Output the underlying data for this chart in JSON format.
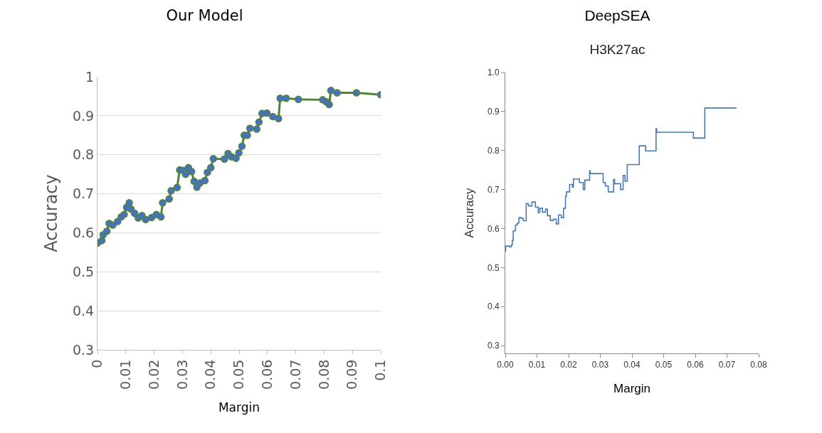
{
  "chart_data": [
    {
      "type": "line",
      "title": "Our Model",
      "xlabel": "Margin",
      "ylabel": "Accuracy",
      "xlim": [
        0,
        0.1
      ],
      "xticks": [
        0,
        0.01,
        0.02,
        0.03,
        0.04,
        0.05,
        0.06,
        0.07,
        0.08,
        0.09,
        0.1
      ],
      "ylim": [
        0.3,
        1
      ],
      "yticks": [
        0.3,
        0.4,
        0.5,
        0.6,
        0.7,
        0.8,
        0.9,
        1
      ],
      "grid": "y",
      "marker": "circle",
      "line_style": "solid",
      "series": [
        {
          "color": "#548235",
          "colors": [
            "#4472c4",
            "#4472c4",
            "#4472c4",
            "#4472c4",
            "#4472c4",
            "#4472c4",
            "#4472c4",
            "#4472c4",
            "#4472c4",
            "#4472c4",
            "#4472c4",
            "#4472c4",
            "#4472c4",
            "#4472c4",
            "#4472c4",
            "#4472c4",
            "#4472c4",
            "#4472c4",
            "#4472c4",
            "#4472c4",
            "#4472c4",
            "#4472c4",
            "#4472c4",
            "#4472c4",
            "#4472c4",
            "#4472c4",
            "#4472c4",
            "#4472c4",
            "#4472c4",
            "#4472c4",
            "#4472c4",
            "#4472c4",
            "#4472c4",
            "#4472c4",
            "#4472c4",
            "#4472c4",
            "#4472c4",
            "#4472c4",
            "#4472c4",
            "#4472c4",
            "#4472c4",
            "#4472c4",
            "#4472c4",
            "#4472c4",
            "#4472c4",
            "#4472c4",
            "#4472c4",
            "#4472c4",
            "#4472c4",
            "#4472c4",
            "#4472c4",
            "#4472c4",
            "#4472c4",
            "#4472c4",
            "#4472c4",
            "#4472c4",
            "#4472c4",
            "#4472c4",
            "#4472c4",
            "#4472c4"
          ],
          "x": [
            0,
            0.0015,
            0.002,
            0.0033,
            0.0041,
            0.0054,
            0.0071,
            0.0084,
            0.0094,
            0.0103,
            0.0112,
            0.0118,
            0.0131,
            0.0144,
            0.0157,
            0.017,
            0.0191,
            0.0208,
            0.0224,
            0.023,
            0.0253,
            0.026,
            0.0281,
            0.029,
            0.0302,
            0.0311,
            0.0321,
            0.0332,
            0.0341,
            0.0351,
            0.0362,
            0.0379,
            0.0388,
            0.04,
            0.0409,
            0.0448,
            0.0461,
            0.0473,
            0.0489,
            0.0499,
            0.051,
            0.0518,
            0.0529,
            0.0538,
            0.0562,
            0.057,
            0.0581,
            0.0598,
            0.0619,
            0.0639,
            0.0645,
            0.0666,
            0.0709,
            0.0795,
            0.0807,
            0.0818,
            0.0824,
            0.0846,
            0.0914,
            0.1
          ],
          "values": [
            0.574,
            0.58,
            0.595,
            0.604,
            0.624,
            0.62,
            0.629,
            0.641,
            0.647,
            0.665,
            0.677,
            0.661,
            0.65,
            0.638,
            0.644,
            0.634,
            0.639,
            0.647,
            0.641,
            0.677,
            0.687,
            0.708,
            0.716,
            0.761,
            0.76,
            0.75,
            0.767,
            0.757,
            0.732,
            0.717,
            0.728,
            0.734,
            0.755,
            0.767,
            0.79,
            0.789,
            0.803,
            0.795,
            0.791,
            0.805,
            0.822,
            0.85,
            0.85,
            0.868,
            0.866,
            0.884,
            0.906,
            0.907,
            0.898,
            0.893,
            0.945,
            0.945,
            0.942,
            0.941,
            0.936,
            0.929,
            0.965,
            0.959,
            0.959,
            0.954
          ]
        }
      ]
    },
    {
      "type": "step",
      "title": "DeepSEA",
      "subtitle": "H3K27ac",
      "xlabel": "Margin",
      "ylabel": "Accuracy",
      "xlim": [
        0,
        0.08
      ],
      "xticks": [
        {
          "value": 0,
          "label": "0.00"
        },
        0.01,
        0.02,
        0.03,
        0.04,
        0.05,
        0.06,
        0.07,
        0.08
      ],
      "ylim": [
        0.28,
        1
      ],
      "yticks": [
        0.3,
        0.4,
        0.5,
        0.6,
        0.7,
        0.8,
        0.9,
        {
          "value": 1,
          "label": "1.0"
        }
      ],
      "grid": false,
      "marker": "none",
      "line_style": "solid",
      "series": [
        {
          "color": "#4a7ab5",
          "x": [
            0,
            0.0001,
            0.0013,
            0.0019,
            0.0022,
            0.0025,
            0.0032,
            0.0038,
            0.0043,
            0.0051,
            0.0057,
            0.0066,
            0.0073,
            0.0084,
            0.0095,
            0.0104,
            0.0109,
            0.0117,
            0.0127,
            0.0133,
            0.0142,
            0.0152,
            0.0161,
            0.0168,
            0.0177,
            0.0184,
            0.019,
            0.0193,
            0.0203,
            0.0212,
            0.0215,
            0.0234,
            0.0246,
            0.0251,
            0.0266,
            0.0268,
            0.0309,
            0.0316,
            0.0325,
            0.0342,
            0.0345,
            0.0364,
            0.0372,
            0.0378,
            0.0385,
            0.0423,
            0.0443,
            0.0476,
            0.0478,
            0.0594,
            0.063,
            0.073
          ],
          "values": [
            0.542,
            0.555,
            0.553,
            0.558,
            0.57,
            0.594,
            0.609,
            0.614,
            0.628,
            0.626,
            0.62,
            0.664,
            0.658,
            0.668,
            0.655,
            0.641,
            0.652,
            0.642,
            0.65,
            0.633,
            0.621,
            0.624,
            0.612,
            0.635,
            0.628,
            0.652,
            0.682,
            0.694,
            0.713,
            0.706,
            0.727,
            0.718,
            0.7,
            0.724,
            0.748,
            0.741,
            0.718,
            0.709,
            0.694,
            0.726,
            0.715,
            0.7,
            0.736,
            0.721,
            0.764,
            0.812,
            0.799,
            0.856,
            0.847,
            0.832,
            0.909,
            0.909
          ]
        }
      ]
    }
  ]
}
